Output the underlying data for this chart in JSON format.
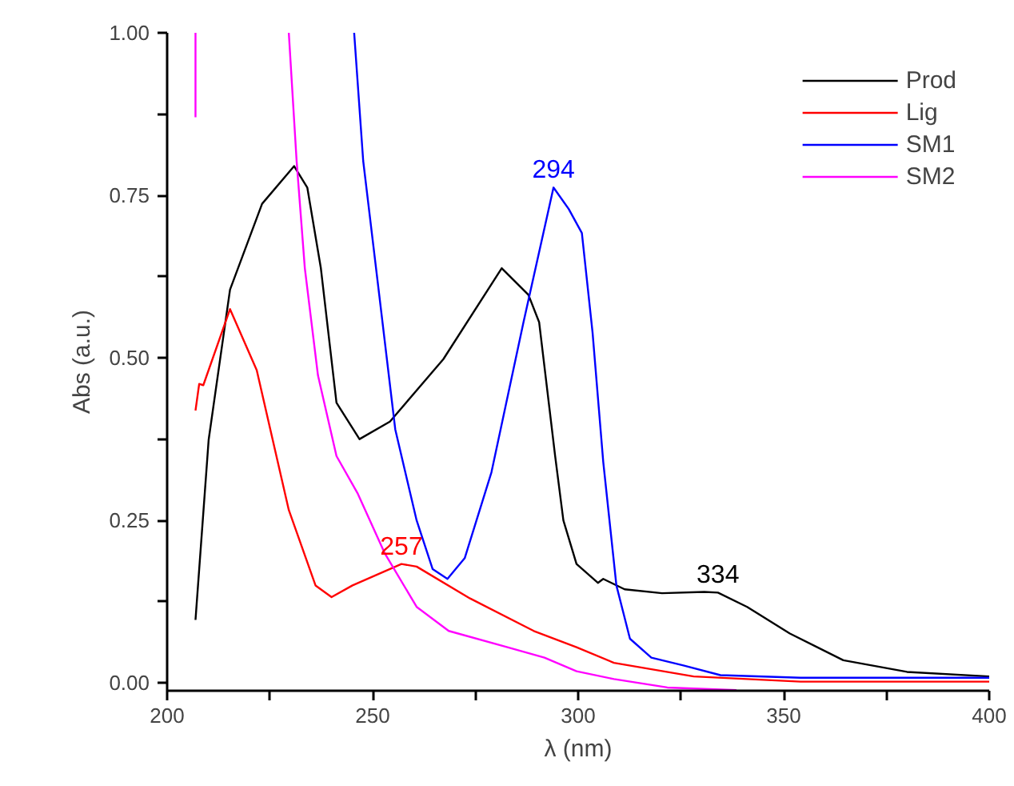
{
  "chart_data": {
    "type": "line",
    "xlabel": "λ (nm)",
    "ylabel": "Abs (a.u.)",
    "xlim": [
      200,
      400
    ],
    "ylim": [
      -0.012,
      1.0
    ],
    "xticks": [
      200,
      {
        "value": 225,
        "label": null
      },
      250,
      {
        "value": 275,
        "label": null
      },
      300,
      {
        "value": 325,
        "label": null
      },
      350,
      {
        "value": 375,
        "label": null
      },
      400
    ],
    "yticks": [
      {
        "value": 0,
        "label": "0.00"
      },
      {
        "value": 0.125,
        "label": null
      },
      {
        "value": 0.25,
        "label": "0.25"
      },
      {
        "value": 0.375,
        "label": null
      },
      {
        "value": 0.5,
        "label": "0.50"
      },
      {
        "value": 0.625,
        "label": null
      },
      {
        "value": 0.75,
        "label": "0.75"
      },
      {
        "value": 0.875,
        "label": null
      },
      {
        "value": 1.0,
        "label": "1.00"
      }
    ],
    "grid": false,
    "legend": "top right",
    "marker": "none",
    "line_style": "solid",
    "series": [
      {
        "name": "Prod",
        "color": "#000000",
        "x": [
          206.9,
          210.1,
          215.3,
          223.1,
          230.9,
          234.1,
          237.4,
          241.2,
          246.8,
          254.2,
          267.2,
          281.4,
          287.9,
          290.5,
          294.4,
          296.4,
          299.6,
          304.8,
          306.1,
          311.3,
          320.4,
          330.7,
          334,
          341.1,
          351.5,
          364.5,
          380.0,
          400.0
        ],
        "values": [
          0.097,
          0.374,
          0.605,
          0.737,
          0.795,
          0.762,
          0.638,
          0.431,
          0.375,
          0.402,
          0.498,
          0.638,
          0.597,
          0.555,
          0.349,
          0.25,
          0.183,
          0.154,
          0.16,
          0.144,
          0.138,
          0.14,
          0.139,
          0.117,
          0.076,
          0.035,
          0.017,
          0.01
        ]
      },
      {
        "name": "Lig",
        "color": "#ff0000",
        "x": [
          206.9,
          207.8,
          208.8,
          215.3,
          221.8,
          229.6,
          236.1,
          240.0,
          245.1,
          257,
          260.7,
          273.7,
          289.2,
          299.6,
          308.7,
          328.1,
          354.1,
          400.0
        ],
        "values": [
          0.419,
          0.46,
          0.458,
          0.575,
          0.481,
          0.266,
          0.15,
          0.132,
          0.15,
          0.183,
          0.179,
          0.13,
          0.08,
          0.055,
          0.031,
          0.01,
          0.002,
          0.002
        ]
      },
      {
        "name": "SM1",
        "color": "#0000ff",
        "x": [
          245.5,
          247.7,
          251.6,
          255.5,
          260.7,
          264.6,
          268.2,
          272.4,
          278.9,
          286.7,
          294,
          297.7,
          300.9,
          303.5,
          306.1,
          309.3,
          312.6,
          317.8,
          325.6,
          334.6,
          354.1,
          400.0
        ],
        "values": [
          1.0,
          0.803,
          0.597,
          0.39,
          0.25,
          0.175,
          0.16,
          0.192,
          0.324,
          0.555,
          0.762,
          0.729,
          0.692,
          0.539,
          0.34,
          0.15,
          0.068,
          0.039,
          0.027,
          0.012,
          0.008,
          0.008
        ]
      },
      {
        "name": "SM2",
        "color": "#ff00ff",
        "x": [
          206.9,
          206.9,
          218.0,
          229.6,
          231.5,
          233.5,
          236.7,
          241.2,
          246.4,
          252.9,
          260.7,
          268.5,
          282.8,
          291.8,
          299.6,
          308.7,
          321.7,
          338.5
        ],
        "values": [
          1.0,
          0.87,
          null,
          1.0,
          0.803,
          0.638,
          0.473,
          0.349,
          0.291,
          0.2,
          0.117,
          0.08,
          0.055,
          0.039,
          0.018,
          0.006,
          -0.007,
          -0.011
        ]
      }
    ],
    "annotations": [
      {
        "text": "294",
        "x": 294,
        "y": 0.762
      },
      {
        "text": "257",
        "x": 257,
        "y": 0.183
      },
      {
        "text": "334",
        "x": 334,
        "y": 0.139
      }
    ]
  }
}
